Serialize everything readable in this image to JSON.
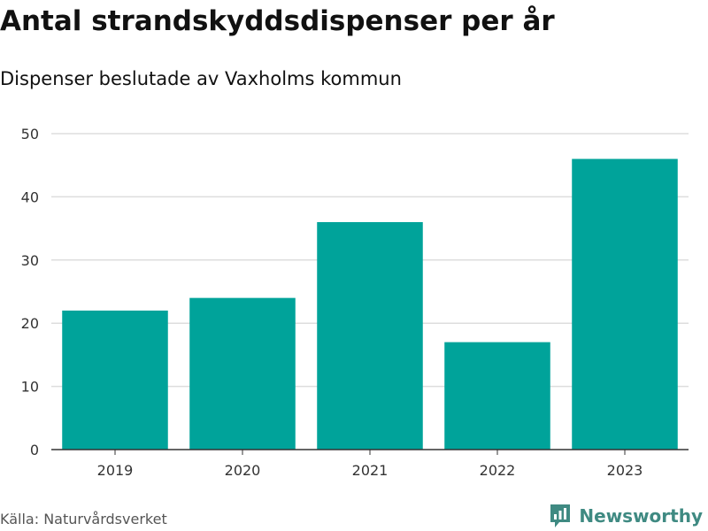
{
  "chart_data": {
    "type": "bar",
    "title": "Antal strandskyddsdispenser per år",
    "subtitle": "Dispenser beslutade av Vaxholms kommun",
    "categories": [
      "2019",
      "2020",
      "2021",
      "2022",
      "2023"
    ],
    "values": [
      22,
      24,
      36,
      17,
      46
    ],
    "ylim": [
      0,
      50
    ],
    "yticks": [
      0,
      10,
      20,
      30,
      40,
      50
    ],
    "grid": true,
    "bar_color": "#00a39a"
  },
  "footer": {
    "source": "Källa: Naturvårdsverket",
    "brand": "Newsworthy"
  },
  "colors": {
    "brand": "#3f8a82",
    "grid": "#dddddd"
  }
}
